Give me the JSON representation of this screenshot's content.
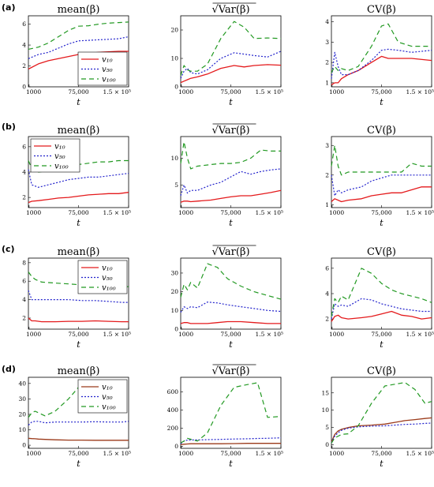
{
  "figure": {
    "row_labels": [
      "(a)",
      "(b)",
      "(c)",
      "(d)"
    ],
    "col_titles": [
      "mean(β)",
      "√Var(β)",
      "CV(β)"
    ],
    "x_label": "t",
    "x_ticks": [
      {
        "value": 1000,
        "label": "1000"
      },
      {
        "value": 75000,
        "label": "75,000"
      },
      {
        "value": 150000,
        "label": "1.5 × 10⁵"
      }
    ],
    "legend": [
      "v₁₀",
      "v₅₀",
      "v₁₀₀"
    ]
  },
  "colors": {
    "v10": "#e41a1c",
    "v10_d": "#9b3a1a",
    "v50": "#2222cc",
    "v100": "#229922"
  },
  "chart_data": [
    {
      "type": "line",
      "row": "(a)",
      "title": "mean(β)",
      "xlabel": "t",
      "xlim": [
        0,
        150000
      ],
      "ylim": [
        0,
        6.8
      ],
      "yticks": [
        0,
        2,
        4,
        6
      ],
      "legend": true,
      "legend_position": "bottom-right",
      "x": [
        0,
        15000,
        30000,
        45000,
        60000,
        75000,
        90000,
        105000,
        120000,
        135000,
        150000
      ],
      "series": [
        {
          "name": "v₁₀",
          "values": [
            1.7,
            2.2,
            2.5,
            2.7,
            2.9,
            3.1,
            3.2,
            3.3,
            3.35,
            3.4,
            3.4
          ]
        },
        {
          "name": "v₅₀",
          "values": [
            2.7,
            3.1,
            3.3,
            3.7,
            4.1,
            4.4,
            4.45,
            4.5,
            4.55,
            4.6,
            4.8
          ]
        },
        {
          "name": "v₁₀₀",
          "values": [
            3.6,
            3.8,
            4.2,
            4.8,
            5.4,
            5.8,
            5.85,
            6.0,
            6.1,
            6.15,
            6.2
          ]
        }
      ]
    },
    {
      "type": "line",
      "row": "(a)",
      "title": "√Var(β)",
      "xlabel": "t",
      "xlim": [
        0,
        150000
      ],
      "ylim": [
        0,
        25
      ],
      "yticks": [
        0,
        10,
        20
      ],
      "x": [
        0,
        5000,
        10000,
        15000,
        25000,
        40000,
        60000,
        80000,
        95000,
        110000,
        130000,
        150000
      ],
      "series": [
        {
          "name": "v₁₀",
          "values": [
            1.5,
            2.0,
            2.5,
            3.0,
            3.5,
            4.5,
            6.5,
            7.5,
            7.0,
            7.5,
            7.8,
            7.6
          ]
        },
        {
          "name": "v₅₀",
          "values": [
            3.0,
            5.5,
            6.5,
            5.0,
            4.5,
            6.0,
            10.0,
            12.0,
            11.5,
            11.0,
            10.5,
            12.5
          ]
        },
        {
          "name": "v₁₀₀",
          "values": [
            4.0,
            7.5,
            6.0,
            5.5,
            5.5,
            8.0,
            17.0,
            23.0,
            21.0,
            17.0,
            17.2,
            17.0
          ]
        }
      ]
    },
    {
      "type": "line",
      "row": "(a)",
      "title": "CV(β)",
      "xlabel": "t",
      "xlim": [
        0,
        150000
      ],
      "ylim": [
        0.8,
        4.3
      ],
      "yticks": [
        1,
        2,
        3,
        4
      ],
      "x": [
        0,
        5000,
        10000,
        15000,
        25000,
        40000,
        60000,
        75000,
        85000,
        100000,
        120000,
        150000
      ],
      "series": [
        {
          "name": "v₁₀",
          "values": [
            0.9,
            1.0,
            1.0,
            1.2,
            1.4,
            1.6,
            2.0,
            2.3,
            2.2,
            2.2,
            2.2,
            2.1
          ]
        },
        {
          "name": "v₅₀",
          "values": [
            1.2,
            2.5,
            1.8,
            1.4,
            1.4,
            1.6,
            2.1,
            2.6,
            2.65,
            2.6,
            2.5,
            2.6
          ]
        },
        {
          "name": "v₁₀₀",
          "values": [
            1.5,
            1.8,
            1.6,
            1.7,
            1.6,
            1.8,
            2.8,
            3.8,
            3.9,
            3.0,
            2.8,
            2.8
          ]
        }
      ]
    },
    {
      "type": "line",
      "row": "(b)",
      "title": "mean(β)",
      "xlabel": "t",
      "xlim": [
        0,
        150000
      ],
      "ylim": [
        1.2,
        6.8
      ],
      "yticks": [
        2,
        4,
        6
      ],
      "legend": true,
      "legend_position": "top-left",
      "x": [
        0,
        5000,
        15000,
        30000,
        45000,
        60000,
        75000,
        90000,
        105000,
        120000,
        135000,
        150000
      ],
      "series": [
        {
          "name": "v₁₀",
          "values": [
            1.6,
            1.7,
            1.75,
            1.85,
            1.95,
            2.0,
            2.1,
            2.2,
            2.25,
            2.3,
            2.3,
            2.4
          ]
        },
        {
          "name": "v₅₀",
          "values": [
            4.2,
            3.0,
            2.8,
            3.0,
            3.2,
            3.4,
            3.5,
            3.6,
            3.6,
            3.7,
            3.8,
            3.9
          ]
        },
        {
          "name": "v₁₀₀",
          "values": [
            4.9,
            4.3,
            4.0,
            4.1,
            4.3,
            4.4,
            4.6,
            4.7,
            4.8,
            4.8,
            4.9,
            4.9
          ]
        }
      ]
    },
    {
      "type": "line",
      "row": "(b)",
      "title": "√Var(β)",
      "xlabel": "t",
      "xlim": [
        0,
        150000
      ],
      "ylim": [
        0.8,
        14
      ],
      "yticks": [
        5,
        10
      ],
      "x": [
        0,
        5000,
        10000,
        15000,
        25000,
        45000,
        60000,
        75000,
        90000,
        105000,
        120000,
        135000,
        150000
      ],
      "series": [
        {
          "name": "v₁₀",
          "values": [
            1.8,
            2.0,
            2.0,
            1.9,
            2.0,
            2.2,
            2.5,
            2.8,
            3.0,
            3.0,
            3.3,
            3.6,
            4.0
          ]
        },
        {
          "name": "v₅₀",
          "values": [
            3.0,
            5.0,
            3.5,
            4.0,
            4.0,
            5.0,
            5.5,
            6.5,
            7.5,
            7.0,
            7.5,
            7.8,
            8.0
          ]
        },
        {
          "name": "v₁₀₀",
          "values": [
            9.0,
            13.0,
            10.0,
            8.0,
            8.5,
            8.8,
            9.0,
            9.0,
            9.2,
            10.0,
            11.5,
            11.3,
            11.3
          ]
        }
      ]
    },
    {
      "type": "line",
      "row": "(b)",
      "title": "CV(β)",
      "xlabel": "t",
      "xlim": [
        0,
        150000
      ],
      "ylim": [
        0.9,
        3.3
      ],
      "yticks": [
        1,
        2,
        3
      ],
      "x": [
        0,
        5000,
        10000,
        15000,
        25000,
        45000,
        60000,
        75000,
        90000,
        105000,
        120000,
        135000,
        150000
      ],
      "series": [
        {
          "name": "v₁₀",
          "values": [
            1.1,
            1.2,
            1.15,
            1.1,
            1.15,
            1.2,
            1.3,
            1.35,
            1.4,
            1.4,
            1.5,
            1.6,
            1.6
          ]
        },
        {
          "name": "v₅₀",
          "values": [
            2.0,
            1.3,
            1.5,
            1.4,
            1.5,
            1.6,
            1.8,
            1.9,
            2.0,
            2.0,
            2.0,
            2.0,
            2.0
          ]
        },
        {
          "name": "v₁₀₀",
          "values": [
            2.3,
            3.0,
            2.3,
            2.0,
            2.1,
            2.1,
            2.1,
            2.1,
            2.1,
            2.1,
            2.4,
            2.3,
            2.3
          ]
        }
      ]
    },
    {
      "type": "line",
      "row": "(c)",
      "title": "mean(β)",
      "xlabel": "t",
      "xlim": [
        0,
        150000
      ],
      "ylim": [
        0.8,
        8.5
      ],
      "yticks": [
        2,
        4,
        6,
        8
      ],
      "legend": true,
      "legend_position": "top-right",
      "x": [
        0,
        5000,
        10000,
        20000,
        40000,
        60000,
        80000,
        100000,
        120000,
        140000,
        150000
      ],
      "series": [
        {
          "name": "v₁₀",
          "values": [
            2.0,
            1.7,
            1.7,
            1.6,
            1.6,
            1.65,
            1.65,
            1.7,
            1.65,
            1.6,
            1.6
          ]
        },
        {
          "name": "v₅₀",
          "values": [
            5.0,
            4.0,
            4.0,
            4.0,
            4.0,
            4.0,
            3.9,
            3.9,
            3.8,
            3.7,
            3.7
          ]
        },
        {
          "name": "v₁₀₀",
          "values": [
            7.0,
            6.5,
            6.2,
            5.9,
            5.8,
            5.7,
            5.6,
            5.5,
            5.45,
            5.4,
            5.4
          ]
        }
      ]
    },
    {
      "type": "line",
      "row": "(c)",
      "title": "√Var(β)",
      "xlabel": "t",
      "xlim": [
        0,
        150000
      ],
      "ylim": [
        0,
        38
      ],
      "yticks": [
        0,
        10,
        20,
        30
      ],
      "x": [
        0,
        5000,
        10000,
        15000,
        25000,
        40000,
        55000,
        70000,
        90000,
        110000,
        130000,
        150000
      ],
      "series": [
        {
          "name": "v₁₀",
          "values": [
            3.0,
            3.5,
            3.5,
            3.0,
            3.0,
            3.0,
            3.5,
            4.0,
            4.0,
            3.5,
            3.0,
            3.0
          ]
        },
        {
          "name": "v₅₀",
          "values": [
            9.0,
            12.0,
            11.0,
            12.0,
            11.5,
            14.5,
            14.0,
            13.0,
            12.0,
            11.0,
            10.0,
            9.5
          ]
        },
        {
          "name": "v₁₀₀",
          "values": [
            17.0,
            24.0,
            21.0,
            25.0,
            22.0,
            35.0,
            33.0,
            27.0,
            23.0,
            20.0,
            18.0,
            16.0
          ]
        }
      ]
    },
    {
      "type": "line",
      "row": "(c)",
      "title": "CV(β)",
      "xlabel": "t",
      "xlim": [
        0,
        150000
      ],
      "ylim": [
        1.2,
        6.8
      ],
      "yticks": [
        2,
        4,
        6
      ],
      "x": [
        0,
        5000,
        10000,
        15000,
        25000,
        45000,
        60000,
        75000,
        90000,
        105000,
        120000,
        135000,
        150000
      ],
      "series": [
        {
          "name": "v₁₀",
          "values": [
            1.8,
            2.2,
            2.3,
            2.1,
            2.0,
            2.1,
            2.2,
            2.4,
            2.6,
            2.3,
            2.2,
            2.0,
            2.1
          ]
        },
        {
          "name": "v₅₀",
          "values": [
            2.0,
            3.2,
            3.0,
            3.1,
            3.0,
            3.6,
            3.5,
            3.2,
            3.0,
            2.8,
            2.7,
            2.6,
            2.6
          ]
        },
        {
          "name": "v₁₀₀",
          "values": [
            2.2,
            3.6,
            3.3,
            3.8,
            3.5,
            6.0,
            5.6,
            4.8,
            4.3,
            4.0,
            3.8,
            3.6,
            3.3
          ]
        }
      ]
    },
    {
      "type": "line",
      "row": "(d)",
      "title": "mean(β)",
      "xlabel": "t",
      "xlim": [
        0,
        150000
      ],
      "ylim": [
        -2,
        44
      ],
      "yticks": [
        0,
        10,
        20,
        30,
        40
      ],
      "legend": true,
      "legend_position": "top-right",
      "x": [
        0,
        5000,
        10000,
        15000,
        25000,
        40000,
        60000,
        80000,
        100000,
        120000,
        140000,
        150000
      ],
      "series": [
        {
          "name": "v₁₀",
          "values": [
            4.5,
            4.3,
            4.2,
            4.0,
            3.8,
            3.5,
            3.3,
            3.3,
            3.2,
            3.2,
            3.2,
            3.2
          ]
        },
        {
          "name": "v₅₀",
          "values": [
            13.0,
            15.0,
            15.5,
            15.5,
            14.5,
            15.0,
            15.0,
            15.0,
            15.2,
            15.0,
            15.0,
            15.5
          ]
        },
        {
          "name": "v₁₀₀",
          "values": [
            18.0,
            21.0,
            22.0,
            21.0,
            19.0,
            22.0,
            30.0,
            40.0,
            38.0,
            38.0,
            38.0,
            38.0
          ]
        }
      ]
    },
    {
      "type": "line",
      "row": "(d)",
      "title": "√Var(β)",
      "xlabel": "t",
      "xlim": [
        0,
        150000
      ],
      "ylim": [
        -20,
        760
      ],
      "yticks": [
        0,
        200,
        400,
        600
      ],
      "x": [
        0,
        5000,
        10000,
        15000,
        25000,
        40000,
        60000,
        80000,
        100000,
        115000,
        130000,
        150000
      ],
      "series": [
        {
          "name": "v₁₀",
          "values": [
            20,
            25,
            28,
            30,
            30,
            30,
            30,
            32,
            35,
            35,
            35,
            35
          ]
        },
        {
          "name": "v₅₀",
          "values": [
            30,
            60,
            70,
            72,
            72,
            75,
            78,
            82,
            85,
            88,
            90,
            95
          ]
        },
        {
          "name": "v₁₀₀",
          "values": [
            40,
            60,
            90,
            80,
            60,
            150,
            450,
            650,
            680,
            700,
            320,
            330
          ]
        }
      ]
    },
    {
      "type": "line",
      "row": "(d)",
      "title": "CV(β)",
      "xlabel": "t",
      "xlim": [
        0,
        150000
      ],
      "ylim": [
        -1,
        19.5
      ],
      "yticks": [
        0,
        5,
        10,
        15
      ],
      "x": [
        0,
        5000,
        10000,
        15000,
        25000,
        40000,
        60000,
        80000,
        95000,
        110000,
        125000,
        140000,
        150000
      ],
      "series": [
        {
          "name": "v₁₀",
          "values": [
            0.8,
            3.0,
            4.0,
            4.5,
            5.0,
            5.5,
            5.7,
            6.0,
            6.5,
            7.0,
            7.3,
            7.6,
            7.8
          ]
        },
        {
          "name": "v₅₀",
          "values": [
            0.6,
            2.5,
            3.5,
            4.2,
            4.8,
            5.2,
            5.4,
            5.5,
            5.7,
            5.9,
            6.0,
            6.2,
            6.3
          ]
        },
        {
          "name": "v₁₀₀",
          "values": [
            0.5,
            2.0,
            2.5,
            3.0,
            3.2,
            5.5,
            12.0,
            17.0,
            17.5,
            18.0,
            16.0,
            12.0,
            12.5
          ]
        }
      ]
    }
  ]
}
